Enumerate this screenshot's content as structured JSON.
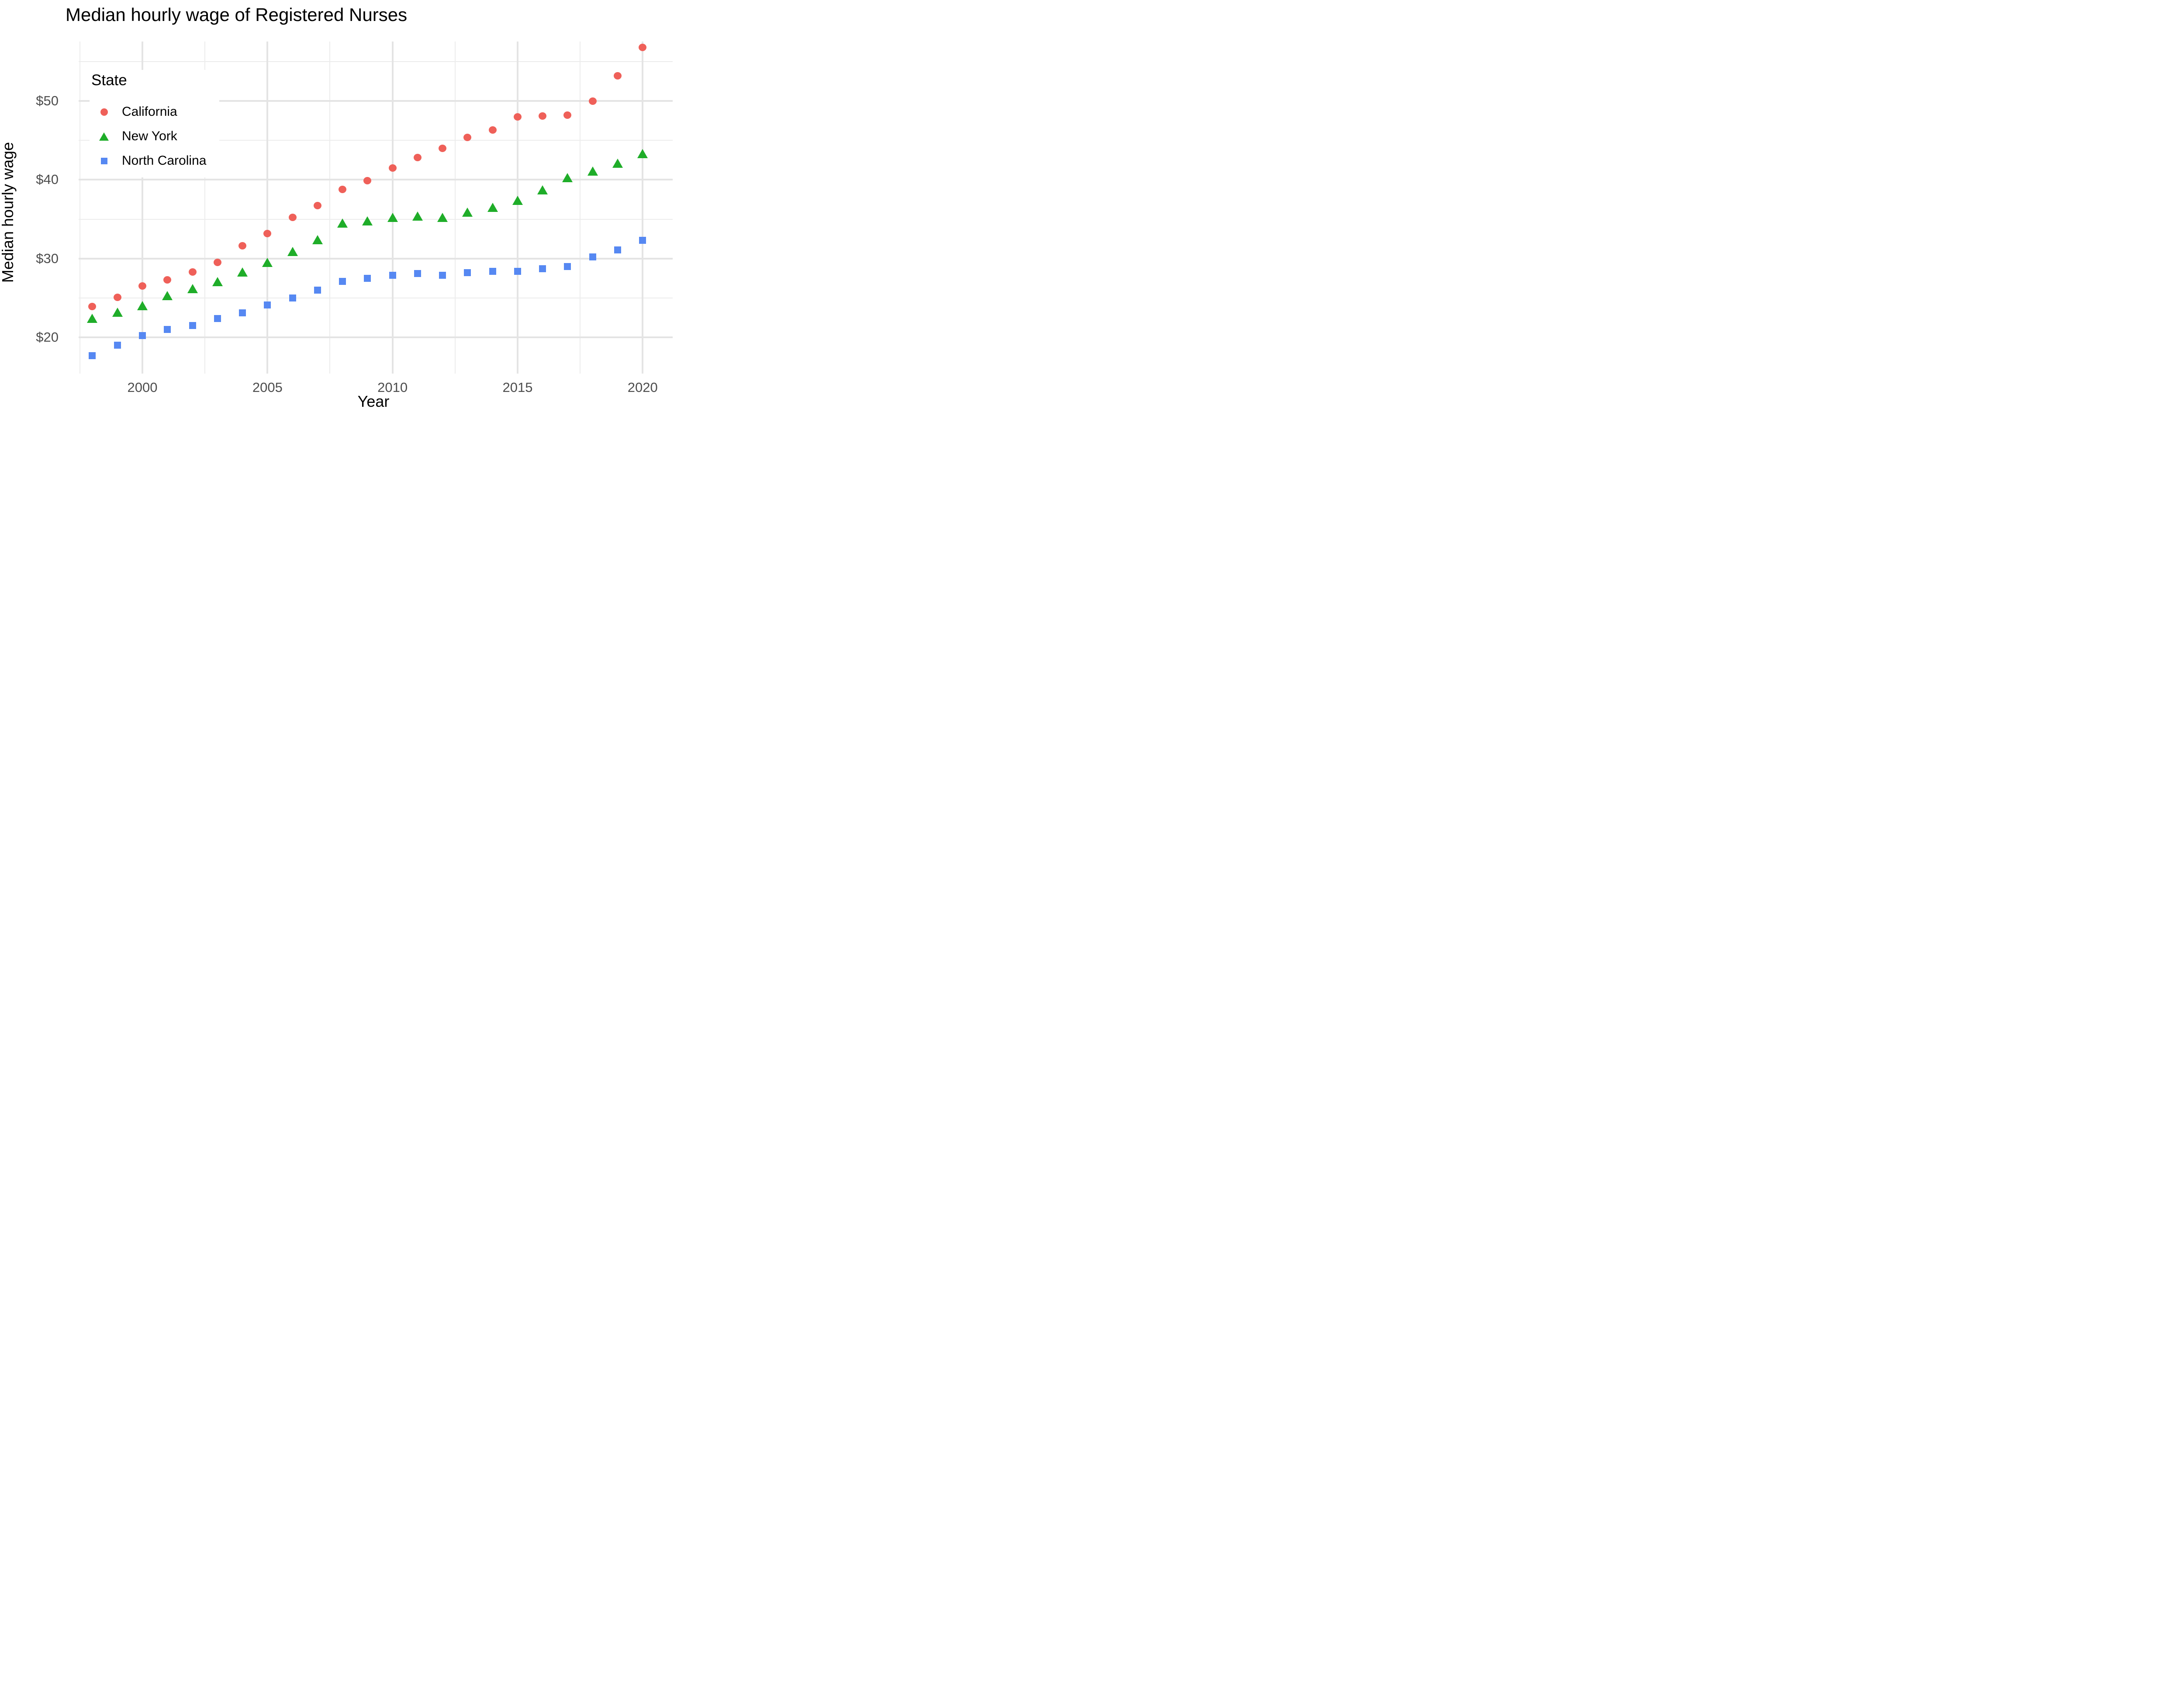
{
  "title": "Median hourly wage of Registered Nurses",
  "axes": {
    "x": {
      "label": "Year",
      "tick_labels": [
        "2000",
        "2005",
        "2010",
        "2015",
        "2020"
      ],
      "tick_values": [
        2000,
        2005,
        2010,
        2015,
        2020
      ],
      "minor_values": [
        1997.5,
        2002.5,
        2007.5,
        2012.5,
        2017.5
      ]
    },
    "y": {
      "label": "Median hourly wage",
      "tick_labels": [
        "$20",
        "$30",
        "$40",
        "$50"
      ],
      "tick_values": [
        20,
        30,
        40,
        50
      ],
      "minor_values": [
        25,
        35,
        45,
        55
      ]
    }
  },
  "legend": {
    "title": "State",
    "items": [
      {
        "label": "California",
        "shape": "circle",
        "color": "#ef6059"
      },
      {
        "label": "New York",
        "shape": "triangle",
        "color": "#1fad29"
      },
      {
        "label": "North Carolina",
        "shape": "square",
        "color": "#5688f2"
      }
    ]
  },
  "chart_data": {
    "type": "scatter",
    "title": "Median hourly wage of Registered Nurses",
    "xlabel": "Year",
    "ylabel": "Median hourly wage",
    "xlim": [
      1997.45,
      2021.2
    ],
    "ylim": [
      15.4,
      57.55
    ],
    "grid": true,
    "legend_position": "inside-top-left",
    "x": [
      1998,
      1999,
      2000,
      2001,
      2002,
      2003,
      2004,
      2005,
      2006,
      2007,
      2008,
      2009,
      2010,
      2011,
      2012,
      2013,
      2014,
      2015,
      2016,
      2017,
      2018,
      2019,
      2020
    ],
    "series": [
      {
        "name": "California",
        "shape": "circle",
        "color": "#ef6059",
        "values": [
          23.9,
          25.1,
          26.5,
          27.3,
          28.3,
          29.5,
          31.6,
          33.2,
          35.2,
          36.7,
          38.8,
          39.9,
          41.5,
          42.8,
          44.0,
          45.4,
          46.3,
          48.0,
          48.1,
          48.2,
          50.0,
          53.2,
          56.8
        ]
      },
      {
        "name": "New York",
        "shape": "triangle",
        "color": "#1fad29",
        "values": [
          22.4,
          23.2,
          24.0,
          25.3,
          26.2,
          27.1,
          28.3,
          29.5,
          30.9,
          32.4,
          34.5,
          34.8,
          35.2,
          35.4,
          35.2,
          35.9,
          36.5,
          37.4,
          38.7,
          40.3,
          41.1,
          42.1,
          43.3
        ]
      },
      {
        "name": "North Carolina",
        "shape": "square",
        "color": "#5688f2",
        "values": [
          17.7,
          19.0,
          20.2,
          21.0,
          21.5,
          22.4,
          23.1,
          24.1,
          25.0,
          26.0,
          27.1,
          27.5,
          27.9,
          28.1,
          27.9,
          28.2,
          28.4,
          28.4,
          28.7,
          29.0,
          30.2,
          31.1,
          32.3
        ]
      }
    ]
  }
}
